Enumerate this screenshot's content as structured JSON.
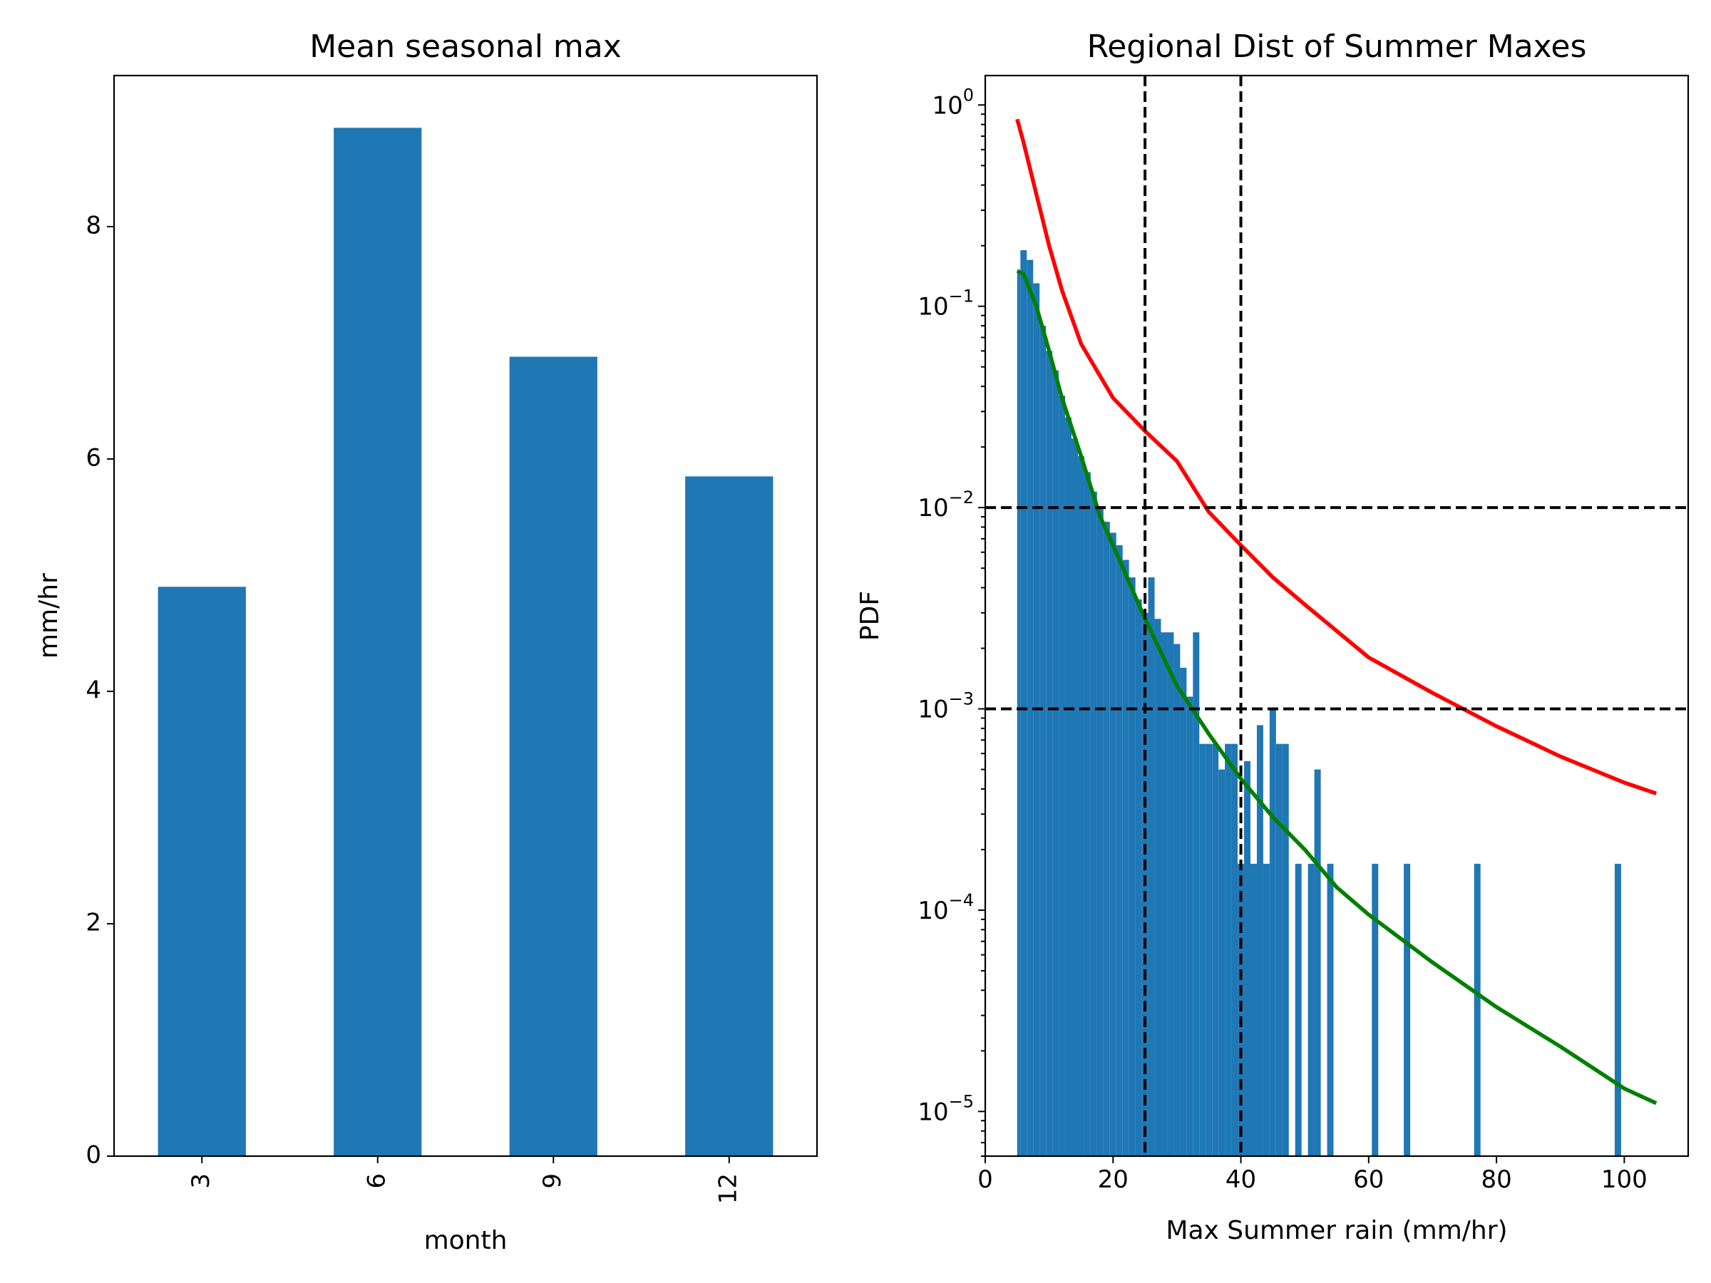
{
  "chart_data": [
    {
      "type": "bar",
      "title": "Mean seasonal max",
      "xlabel": "month",
      "ylabel": "mm/hr",
      "categories": [
        "3",
        "6",
        "9",
        "12"
      ],
      "values": [
        4.9,
        8.85,
        6.88,
        5.85
      ],
      "ylim": [
        0,
        9.3
      ],
      "yticks": [
        0,
        2,
        4,
        6,
        8
      ],
      "bar_color": "#1f77b4",
      "grid": false
    },
    {
      "type": "histogram",
      "title": "Regional Dist of Summer Maxes",
      "xlabel": "Max Summer rain (mm/hr)",
      "ylabel": "PDF",
      "xlim": [
        0,
        110
      ],
      "ylim": [
        6e-06,
        1.4
      ],
      "yscale": "log",
      "xticks": [
        0,
        20,
        40,
        60,
        80,
        100
      ],
      "yticks": [
        {
          "base": "10",
          "exp": "0",
          "value": 1
        },
        {
          "base": "10",
          "exp": "−1",
          "value": 0.1
        },
        {
          "base": "10",
          "exp": "−2",
          "value": 0.01
        },
        {
          "base": "10",
          "exp": "−3",
          "value": 0.001
        },
        {
          "base": "10",
          "exp": "−4",
          "value": 0.0001
        },
        {
          "base": "10",
          "exp": "−5",
          "value": 1e-05
        }
      ],
      "bar_color": "#1f77b4",
      "histogram": [
        [
          5,
          5.5,
          0.15
        ],
        [
          5.5,
          6.5,
          0.19
        ],
        [
          6.5,
          7.5,
          0.17
        ],
        [
          7.5,
          8.5,
          0.13
        ],
        [
          8.5,
          9.5,
          0.08
        ],
        [
          9.5,
          10.5,
          0.06
        ],
        [
          10.5,
          11.5,
          0.048
        ],
        [
          11.5,
          12.5,
          0.036
        ],
        [
          12.5,
          13.5,
          0.028
        ],
        [
          13.5,
          14.5,
          0.022
        ],
        [
          14.5,
          15.5,
          0.018
        ],
        [
          15.5,
          16.5,
          0.015
        ],
        [
          16.5,
          17.5,
          0.012
        ],
        [
          17.5,
          18.5,
          0.01
        ],
        [
          18.5,
          19.5,
          0.0085
        ],
        [
          19.5,
          20.5,
          0.0075
        ],
        [
          20.5,
          21.5,
          0.0065
        ],
        [
          21.5,
          22.5,
          0.0055
        ],
        [
          22.5,
          23.5,
          0.0045
        ],
        [
          23.5,
          24.5,
          0.0035
        ],
        [
          24.5,
          25.5,
          0.003
        ],
        [
          25.5,
          26.5,
          0.0045
        ],
        [
          26.5,
          27.5,
          0.0028
        ],
        [
          27.5,
          28.5,
          0.0024
        ],
        [
          28.5,
          29.5,
          0.0024
        ],
        [
          29.5,
          30.5,
          0.0021
        ],
        [
          30.5,
          31.5,
          0.0016
        ],
        [
          31.5,
          32.5,
          0.00115
        ],
        [
          32.5,
          33.5,
          0.0024
        ],
        [
          33.5,
          34.5,
          0.00067
        ],
        [
          34.5,
          35.5,
          0.00067
        ],
        [
          35.5,
          36.5,
          0.00067
        ],
        [
          36.5,
          37.5,
          0.0005
        ],
        [
          37.5,
          38.5,
          0.00067
        ],
        [
          38.5,
          39.5,
          0.00067
        ],
        [
          39.5,
          40.5,
          0.00017
        ],
        [
          40.5,
          41.5,
          0.00055
        ],
        [
          41.5,
          42.5,
          0.00017
        ],
        [
          42.5,
          43.5,
          0.00083
        ],
        [
          43.5,
          44.5,
          0.00017
        ],
        [
          44.5,
          45.5,
          0.001
        ],
        [
          45.5,
          46.5,
          0.00067
        ],
        [
          46.5,
          47.5,
          0.00067
        ],
        [
          48.5,
          49.5,
          0.00017
        ],
        [
          50.5,
          51.5,
          0.00017
        ],
        [
          51.5,
          52.5,
          0.0005
        ],
        [
          53.5,
          54.5,
          0.00017
        ],
        [
          60.5,
          61.5,
          0.00017
        ],
        [
          65.5,
          66.5,
          0.00017
        ],
        [
          76.5,
          77.5,
          0.00017
        ],
        [
          98.5,
          99.5,
          0.00017
        ]
      ],
      "series": [
        {
          "color": "#ff0000",
          "x": [
            5,
            6,
            8,
            10,
            12,
            15,
            20,
            25,
            30,
            35,
            40,
            45,
            50,
            60,
            70,
            80,
            90,
            100,
            105
          ],
          "y": [
            0.85,
            0.65,
            0.36,
            0.2,
            0.12,
            0.065,
            0.035,
            0.024,
            0.017,
            0.0095,
            0.0065,
            0.0045,
            0.0033,
            0.0018,
            0.0012,
            0.00082,
            0.00058,
            0.00043,
            0.00038
          ]
        },
        {
          "color": "#008000",
          "x": [
            5,
            6,
            8,
            10,
            12,
            15,
            18,
            20,
            25,
            30,
            35,
            40,
            45,
            50,
            55,
            60,
            70,
            80,
            90,
            100,
            105
          ],
          "y": [
            0.15,
            0.145,
            0.1,
            0.06,
            0.035,
            0.018,
            0.009,
            0.0065,
            0.0028,
            0.0013,
            0.00075,
            0.00045,
            0.00029,
            0.0002,
            0.00013,
            9.5e-05,
            5.5e-05,
            3.3e-05,
            2.1e-05,
            1.3e-05,
            1.1e-05
          ]
        }
      ],
      "vlines": [
        25,
        40
      ],
      "hlines": [
        0.01,
        0.001
      ],
      "grid": false
    }
  ]
}
